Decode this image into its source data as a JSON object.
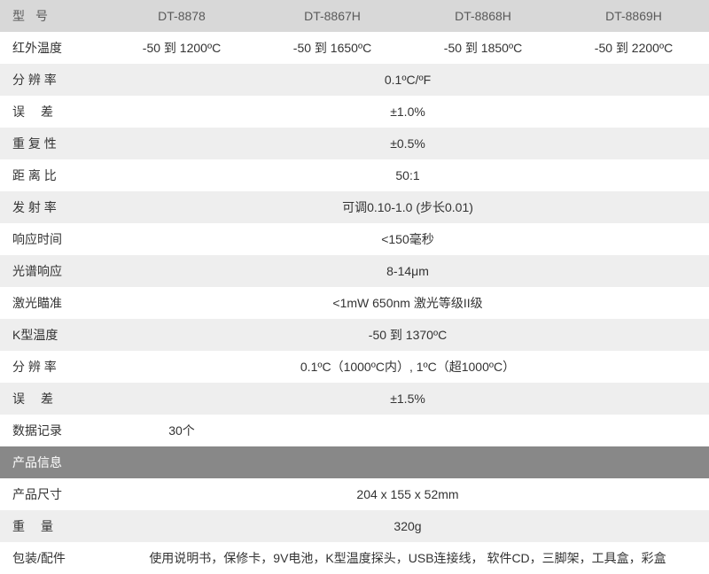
{
  "colors": {
    "header_bg": "#d8d8d8",
    "header_text": "#5a5a5a",
    "row_odd_bg": "#ffffff",
    "row_even_bg": "#eeeeee",
    "section_bg": "#888888",
    "section_text": "#ffffff",
    "text": "#333333"
  },
  "table": {
    "header": {
      "label": "型号",
      "models": [
        "DT-8878",
        "DT-8867H",
        "DT-8868H",
        "DT-8869H"
      ]
    },
    "rows": [
      {
        "label": "红外温度",
        "type": "per_model",
        "values": [
          "-50 到 1200ºC",
          "-50 到 1650ºC",
          "-50 到 1850ºC",
          "-50 到 2200ºC"
        ]
      },
      {
        "label": "分 辨 率",
        "type": "merged",
        "value": "0.1ºC/ºF"
      },
      {
        "label": "误差",
        "spaced": true,
        "type": "merged",
        "value": "±1.0%"
      },
      {
        "label": "重 复 性",
        "type": "merged",
        "value": "±0.5%"
      },
      {
        "label": "距 离 比",
        "type": "merged",
        "value": "50:1"
      },
      {
        "label": "发 射 率",
        "type": "merged",
        "value": "可调0.10-1.0 (步长0.01)"
      },
      {
        "label": "响应时间",
        "type": "merged",
        "value": "<150毫秒"
      },
      {
        "label": "光谱响应",
        "type": "merged",
        "value": "8-14μm"
      },
      {
        "label": "激光瞄准",
        "type": "merged",
        "value": "<1mW 650nm 激光等级II级"
      },
      {
        "label": "K型温度",
        "type": "merged",
        "value": "-50 到 1370ºC"
      },
      {
        "label": "分 辨 率",
        "type": "merged",
        "value": "0.1ºC（1000ºC内）, 1ºC（超1000ºC）"
      },
      {
        "label": "误差",
        "spaced": true,
        "type": "merged",
        "value": "±1.5%"
      },
      {
        "label": "数据记录",
        "type": "first_only",
        "value": "30个"
      }
    ],
    "section_header": "产品信息",
    "info_rows": [
      {
        "label": "产品尺寸",
        "type": "merged",
        "value": "204 x 155 x 52mm"
      },
      {
        "label": "重量",
        "spaced": true,
        "type": "merged",
        "value": "320g"
      },
      {
        "label": "包装/配件",
        "type": "merged",
        "wrap": true,
        "value": "使用说明书，保修卡，9V电池，K型温度探头，USB连接线，  软件CD，三脚架，工具盒，彩盒"
      }
    ]
  }
}
